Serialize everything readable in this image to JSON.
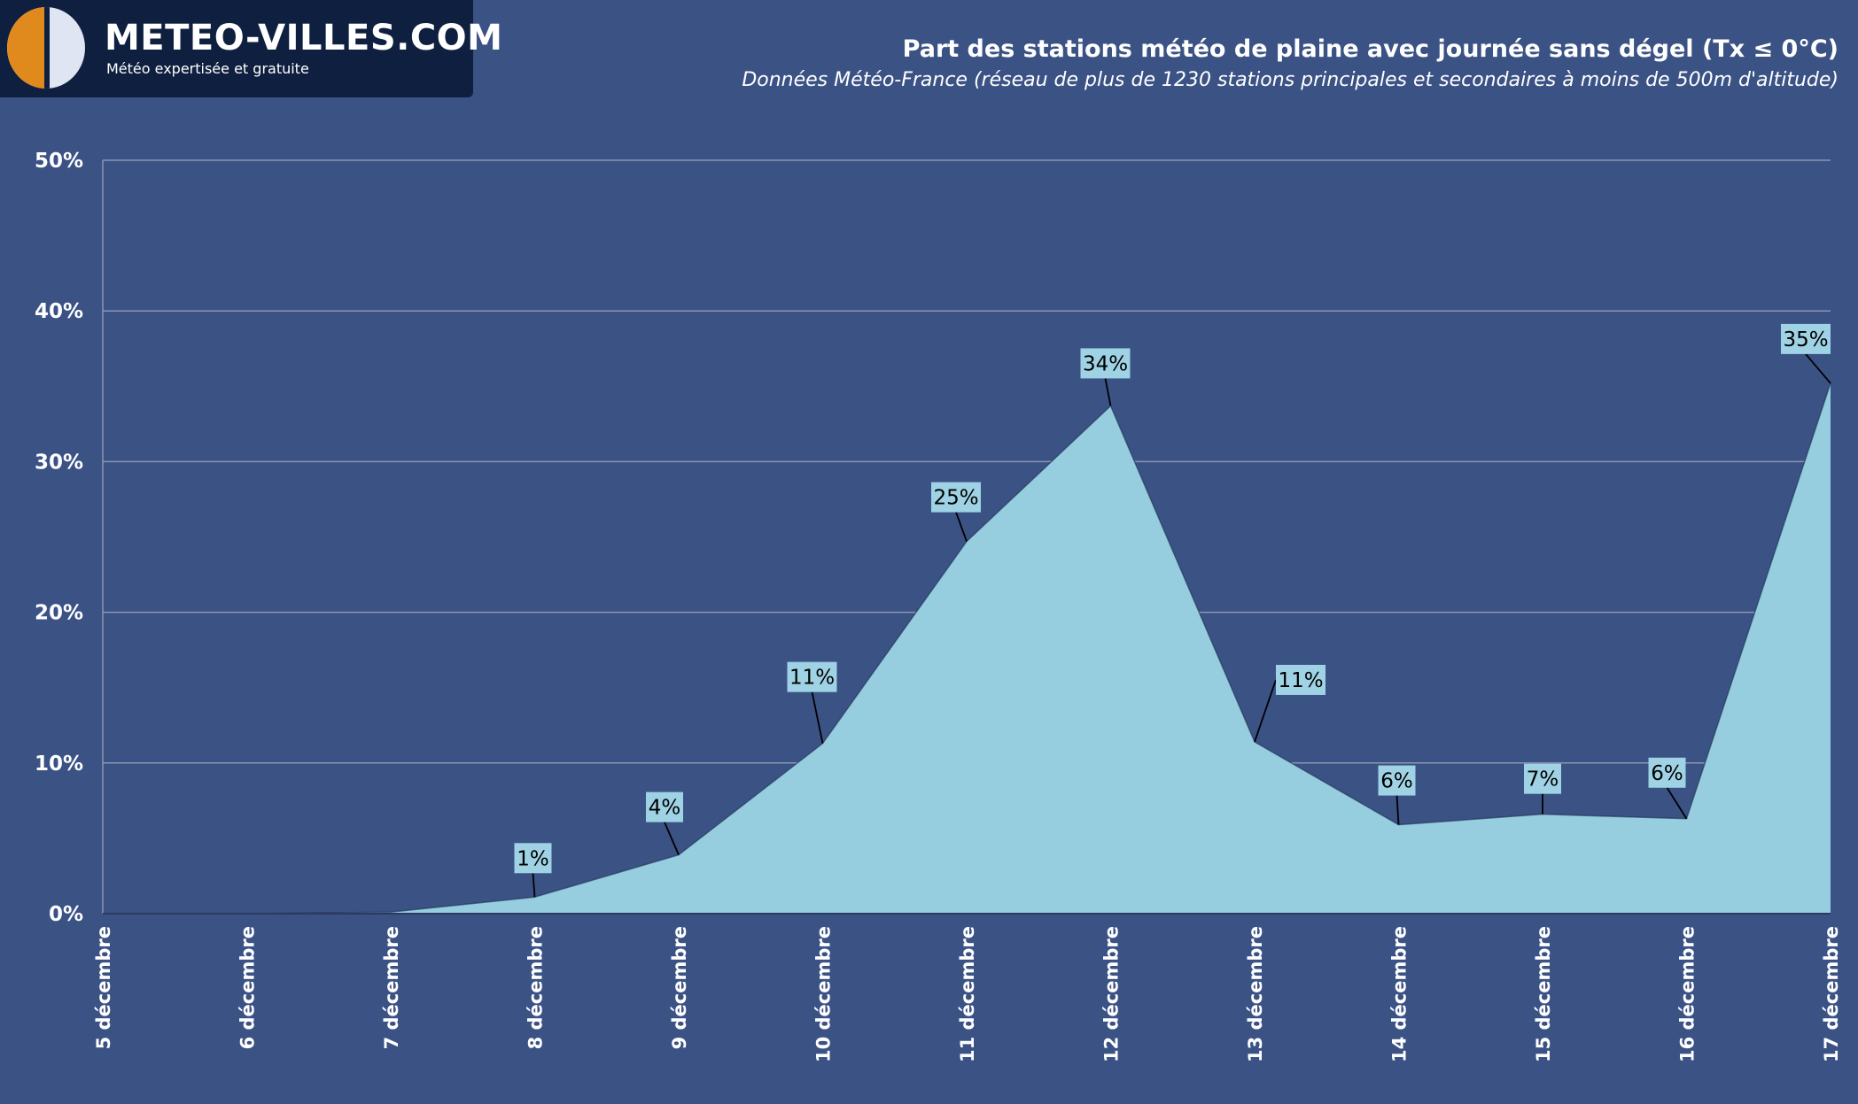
{
  "logo": {
    "title": "METEO-VILLES.COM",
    "subtitle": "Météo expertisée et gratuite",
    "colors": {
      "orange": "#e08a1e",
      "light": "#dfe5f2",
      "navy": "#0e1f3f"
    }
  },
  "header": {
    "title": "Part des stations météo de plaine avec journée sans dégel (Tx ≤ 0°C)",
    "subtitle": "Données Météo-France (réseau de plus de 1230 stations principales et secondaires à moins de 500m d'altitude)"
  },
  "colors": {
    "background": "#3b5285",
    "area_fill": "#96cddf",
    "label_box": "#9ed2e4",
    "gridline": "#8a96b2",
    "text": "#ffffff"
  },
  "chart_data": {
    "type": "area",
    "title": "Part des stations météo de plaine avec journée sans dégel (Tx ≤ 0°C)",
    "subtitle": "Données Météo-France (réseau de plus de 1230 stations principales et secondaires à moins de 500m d'altitude)",
    "xlabel": "",
    "ylabel": "",
    "categories": [
      "5 décembre",
      "6 décembre",
      "7 décembre",
      "8 décembre",
      "9 décembre",
      "10 décembre",
      "11 décembre",
      "12 décembre",
      "13 décembre",
      "14 décembre",
      "15 décembre",
      "16 décembre",
      "17 décembre"
    ],
    "values": [
      0,
      0,
      0.1,
      1.1,
      3.9,
      11.3,
      24.7,
      33.7,
      11.4,
      5.9,
      6.6,
      6.3,
      35.2
    ],
    "data_labels": [
      null,
      null,
      null,
      "1%",
      "4%",
      "11%",
      "25%",
      "34%",
      "11%",
      "6%",
      "7%",
      "6%",
      "35%"
    ],
    "yticks": [
      "0%",
      "10%",
      "20%",
      "30%",
      "40%",
      "50%"
    ],
    "ylim": [
      0,
      50
    ],
    "grid": true,
    "legend": "none"
  }
}
